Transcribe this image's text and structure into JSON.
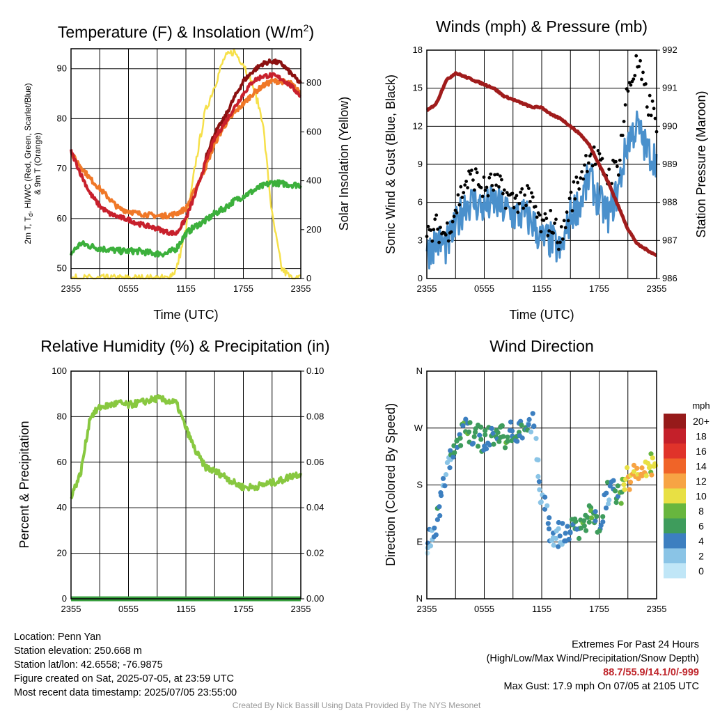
{
  "colors": {
    "temp": "#c8202c",
    "dewpoint": "#3cb03c",
    "temp9m": "#f07828",
    "heatindex": "#8b1010",
    "insolation": "#f6e04a",
    "wind": "#4a90cc",
    "gust": "#000000",
    "pressure": "#a01c1c",
    "rh": "#88c840",
    "precip": "#3aa040",
    "speed_scale": [
      "#c0e6f7",
      "#8ac4e6",
      "#3c7fc0",
      "#3e9c5c",
      "#68b63e",
      "#e8e044",
      "#f7a444",
      "#f06428",
      "#e0332a",
      "#c4202a",
      "#961a1a"
    ]
  },
  "panels": {
    "temperature": {
      "title_main": "Temperature (F) & Insolation (W/m",
      "title_sup": "2",
      "title_end": ")",
      "ylabel_left_parts": [
        "2m T, T",
        "d",
        ", HI/WC (Red, Green, Scarlet/Blue)"
      ],
      "ylabel_left_line2": "& 9m T (Orange)",
      "ylabel_right": "Solar Insolation (Yellow)",
      "xlabel": "Time (UTC)"
    },
    "winds": {
      "title": "Winds (mph) & Pressure (mb)",
      "ylabel_left": "Sonic Wind & Gust (Blue, Black)",
      "ylabel_right": "Station Pressure (Maroon)",
      "xlabel": "Time (UTC)"
    },
    "humidity": {
      "title": "Relative Humidity (%) & Precipitation (in)",
      "ylabel_left": "Percent & Precipitation"
    },
    "direction": {
      "title": "Wind Direction",
      "ylabel_left": "Direction (Colored By Speed)",
      "colorbar_unit": "mph"
    }
  },
  "chart_data": [
    {
      "type": "line",
      "title": "Temperature (F) & Insolation (W/m2)",
      "xlabel": "Time (UTC)",
      "x_ticks": [
        "2355",
        "0555",
        "1155",
        "1755",
        "2355"
      ],
      "ylim": [
        48,
        94
      ],
      "y_ticks": [
        50,
        60,
        70,
        80,
        90
      ],
      "y2lim": [
        0,
        940
      ],
      "y2_ticks": [
        0,
        200,
        400,
        600,
        800
      ],
      "x": [
        0,
        1,
        2,
        3,
        4,
        5,
        6,
        7,
        8,
        9,
        10,
        11,
        12,
        13,
        14,
        15,
        16,
        17,
        18,
        19,
        20,
        21,
        22,
        23,
        24
      ],
      "series": [
        {
          "name": "2m T",
          "values": [
            73.5,
            69,
            65,
            62.5,
            61,
            60.3,
            59.8,
            59,
            58.5,
            58,
            57.3,
            57,
            60,
            65,
            71,
            76,
            79,
            82,
            85,
            87.5,
            88.5,
            88.7,
            88,
            86.5,
            84.5
          ]
        },
        {
          "name": "Td",
          "values": [
            53,
            55,
            54.5,
            54,
            53.8,
            53.5,
            53.5,
            53.5,
            53.2,
            53,
            53,
            54,
            57,
            58.5,
            59.5,
            61,
            62,
            63.5,
            64.5,
            65.5,
            66.5,
            67.2,
            67,
            66.8,
            66.7
          ]
        },
        {
          "name": "HI/WC",
          "values": [
            null,
            null,
            null,
            null,
            null,
            null,
            null,
            null,
            null,
            null,
            null,
            null,
            null,
            null,
            72,
            77,
            80,
            84,
            87.5,
            89.5,
            91,
            91.5,
            91,
            89,
            87
          ]
        },
        {
          "name": "9m T",
          "values": [
            73,
            70.5,
            68,
            66,
            64,
            62,
            61.5,
            61,
            60.8,
            60.5,
            60.6,
            61,
            62,
            66,
            70,
            75,
            78.5,
            81,
            83,
            85,
            86.5,
            87.5,
            87.5,
            87,
            85
          ]
        },
        {
          "name": "Solar Insolation",
          "axis": "right",
          "values": [
            0,
            0,
            0,
            0,
            0,
            0,
            0,
            0,
            0,
            0,
            0,
            35,
            200,
            470,
            680,
            790,
            900,
            930,
            880,
            790,
            650,
            260,
            40,
            0,
            0
          ]
        }
      ]
    },
    {
      "type": "line",
      "title": "Winds (mph) & Pressure (mb)",
      "xlabel": "Time (UTC)",
      "x_ticks": [
        "2355",
        "0555",
        "1155",
        "1755",
        "2355"
      ],
      "ylim": [
        0,
        18
      ],
      "y_ticks": [
        0,
        3,
        6,
        9,
        12,
        15,
        18
      ],
      "y2lim": [
        986,
        992
      ],
      "y2_ticks": [
        986,
        987,
        988,
        989,
        990,
        991,
        992
      ],
      "x": [
        0,
        1,
        2,
        3,
        4,
        5,
        6,
        7,
        8,
        9,
        10,
        11,
        12,
        13,
        14,
        15,
        16,
        17,
        18,
        19,
        20,
        21,
        22,
        23,
        24
      ],
      "series": [
        {
          "name": "Sonic Wind",
          "values": [
            2,
            3,
            2.5,
            4,
            6,
            6,
            5.5,
            6,
            5.5,
            5,
            5,
            4.5,
            3,
            3,
            2,
            5,
            6,
            8,
            6,
            5,
            7,
            11,
            12,
            10,
            9.5
          ]
        },
        {
          "name": "Gust",
          "values": [
            3,
            4,
            3.5,
            5.5,
            7.5,
            8,
            7,
            7.5,
            6.8,
            6,
            6.5,
            6,
            4,
            4.5,
            3,
            6,
            8,
            10,
            9,
            8,
            9,
            15,
            17,
            14,
            12.5
          ]
        },
        {
          "name": "Station Pressure",
          "axis": "right",
          "values": [
            990.4,
            990.6,
            991.2,
            991.4,
            991.3,
            991.2,
            991.1,
            991.0,
            990.8,
            990.7,
            990.6,
            990.5,
            990.5,
            990.3,
            990.2,
            990.0,
            989.8,
            989.5,
            989.0,
            988.5,
            987.9,
            987.3,
            986.9,
            986.75,
            986.6
          ]
        }
      ]
    },
    {
      "type": "line",
      "title": "Relative Humidity (%) & Precipitation (in)",
      "x_ticks": [
        "2355",
        "0555",
        "1155",
        "1755",
        "2355"
      ],
      "ylim": [
        0,
        100
      ],
      "y_ticks": [
        0,
        20,
        40,
        60,
        80,
        100
      ],
      "y2lim": [
        0,
        0.1
      ],
      "y2_ticks": [
        "0.00",
        "0.02",
        "0.04",
        "0.06",
        "0.08",
        "0.10"
      ],
      "x": [
        0,
        1,
        2,
        3,
        4,
        5,
        6,
        7,
        8,
        9,
        10,
        11,
        12,
        13,
        14,
        15,
        16,
        17,
        18,
        19,
        20,
        21,
        22,
        23,
        24
      ],
      "series": [
        {
          "name": "Relative Humidity",
          "values": [
            45,
            55,
            80,
            84,
            85,
            86,
            85,
            86,
            87,
            88,
            87,
            86,
            75,
            65,
            58,
            56,
            54,
            51,
            49,
            49,
            50,
            51,
            52,
            54,
            55
          ]
        },
        {
          "name": "Precipitation",
          "axis": "right",
          "values": [
            0,
            0,
            0,
            0,
            0,
            0,
            0,
            0,
            0,
            0,
            0,
            0,
            0,
            0,
            0,
            0,
            0,
            0,
            0,
            0,
            0,
            0,
            0,
            0,
            0
          ]
        }
      ]
    },
    {
      "type": "scatter",
      "title": "Wind Direction",
      "x_ticks": [
        "2355",
        "0555",
        "1155",
        "1755",
        "2355"
      ],
      "y_ticks": [
        "N",
        "E",
        "S",
        "W",
        "N"
      ],
      "ylim": [
        0,
        360
      ],
      "legend": {
        "unit": "mph",
        "labels": [
          "0",
          "2",
          "4",
          "6",
          "8",
          "10",
          "12",
          "14",
          "16",
          "18",
          "20+"
        ]
      },
      "x": [
        0,
        1,
        2,
        3,
        4,
        5,
        6,
        7,
        8,
        9,
        10,
        11,
        12,
        13,
        14,
        15,
        16,
        17,
        18,
        19,
        20,
        21,
        22,
        23,
        24
      ],
      "direction_deg": [
        80,
        120,
        200,
        245,
        265,
        262,
        250,
        260,
        255,
        262,
        270,
        280,
        160,
        105,
        100,
        110,
        115,
        130,
        120,
        175,
        160,
        190,
        200,
        210,
        215
      ],
      "speed_mph": [
        2,
        4,
        3,
        5,
        6,
        6,
        5,
        5,
        6,
        5,
        5,
        4,
        2,
        3,
        3,
        5,
        6,
        7,
        5,
        4,
        6,
        11,
        12,
        10,
        10
      ]
    }
  ],
  "footer": {
    "location": "Location: Penn Yan",
    "elevation": "Station elevation: 250.668 m",
    "latlon": "Station lat/lon: 42.6558; -76.9875",
    "created": "Figure created on Sat, 2025-07-05, at 23:59 UTC",
    "recent": "Most recent data timestamp: 2025/07/05 23:55:00",
    "extremes_title": "Extremes For Past 24 Hours",
    "extremes_legend": "(High/Low/Max Wind/Precipitation/Snow Depth)",
    "extremes_values": "88.7/55.9/14.1/0/-999",
    "max_gust": "Max Gust: 17.9 mph On 07/05 at 2105 UTC",
    "credit": "Created By Nick Bassill Using Data Provided By The NYS Mesonet"
  }
}
